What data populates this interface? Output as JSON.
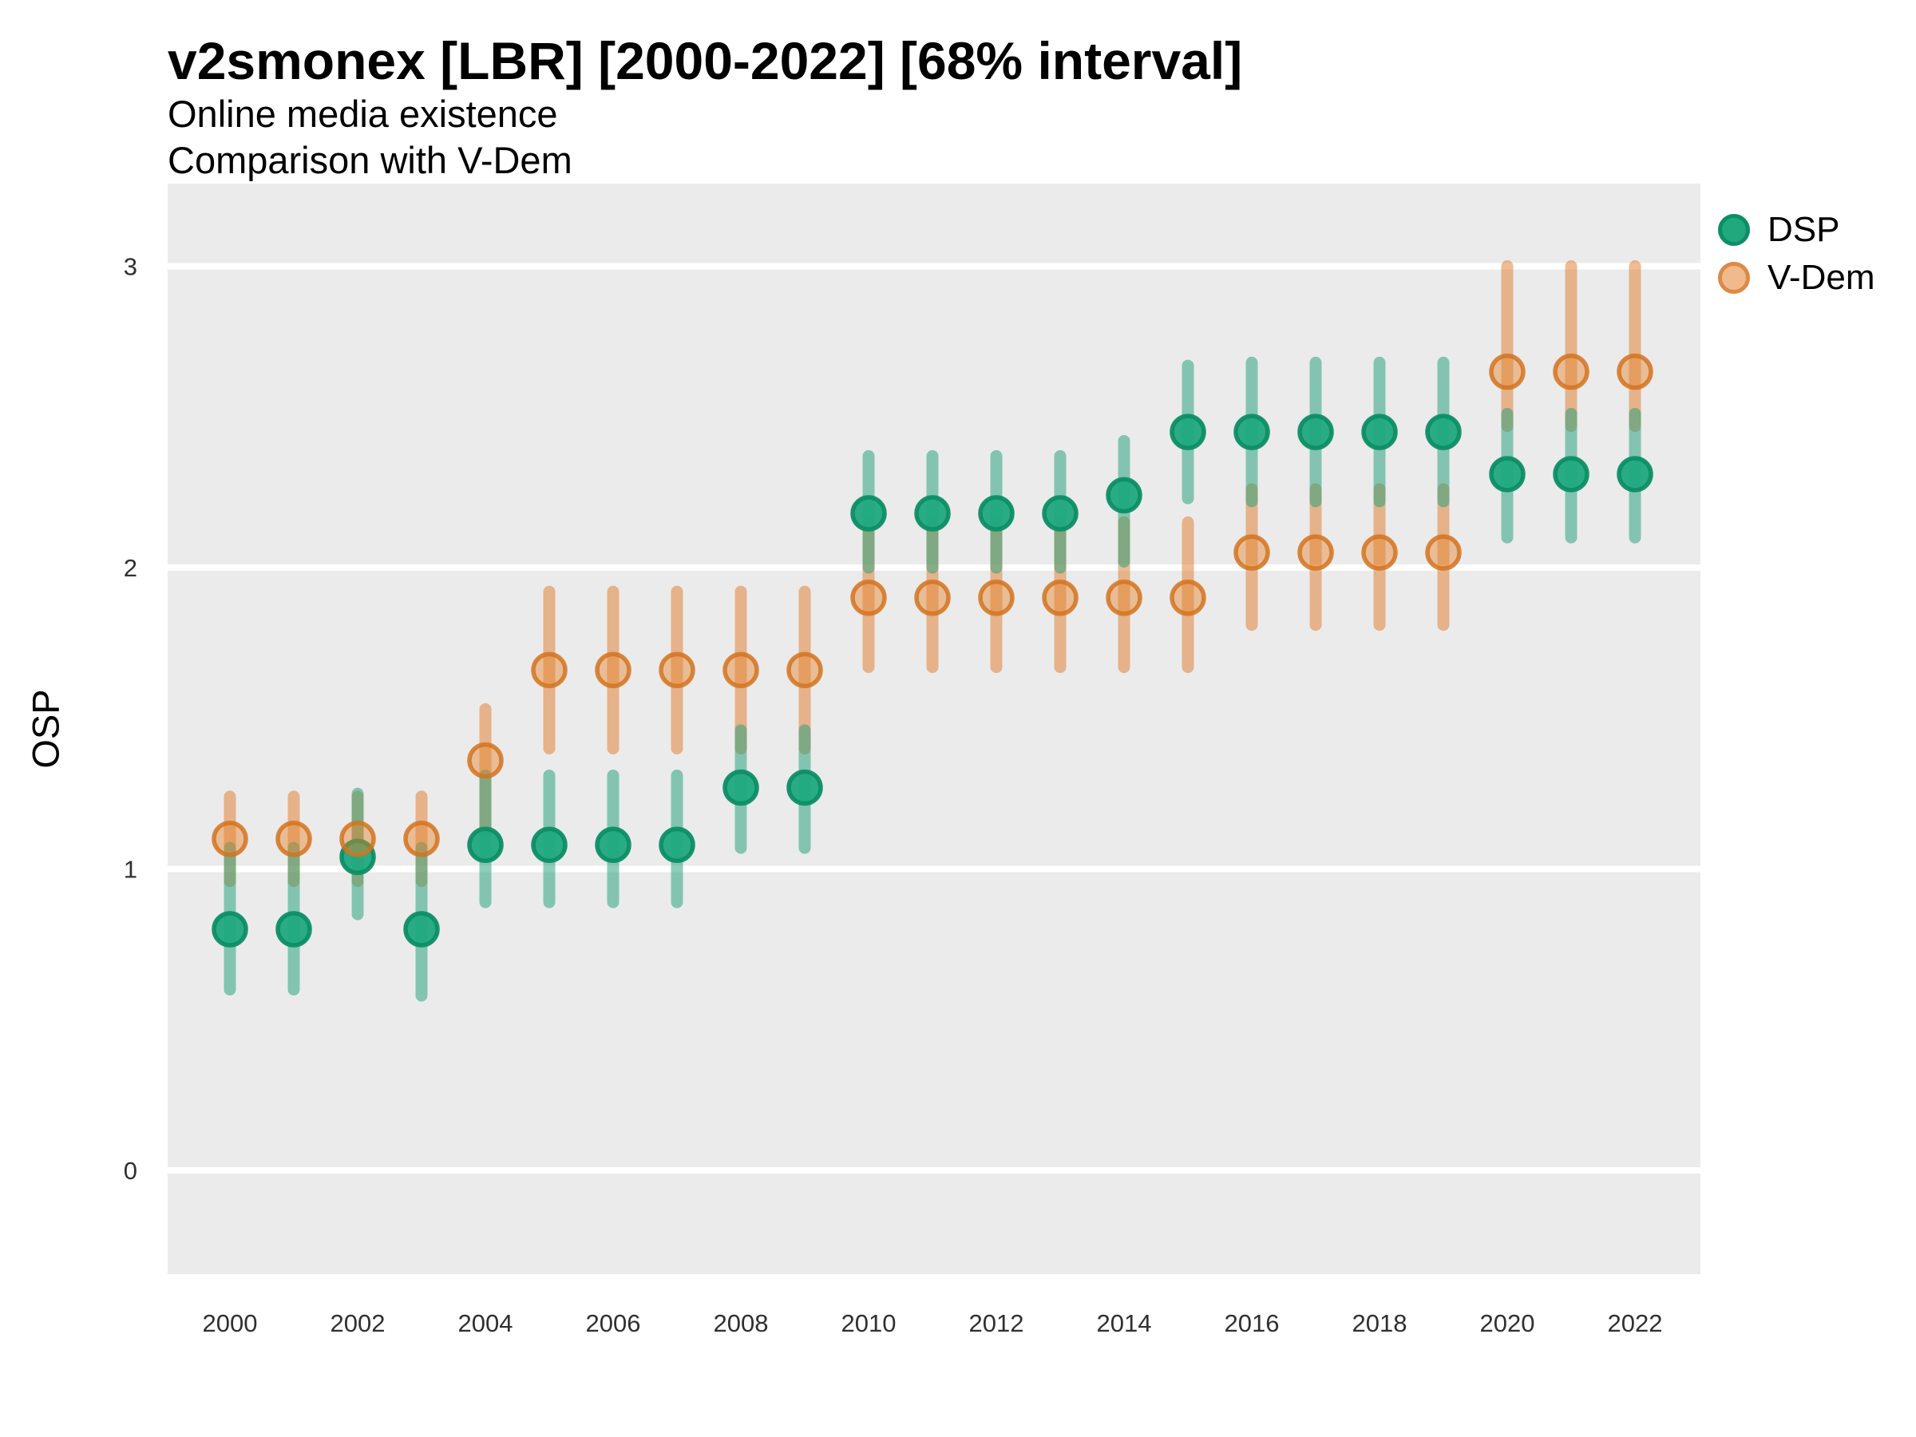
{
  "header": {
    "title": "v2smonex [LBR] [2000-2022] [68% interval]",
    "subtitle1": "Online media existence",
    "subtitle2": "Comparison with V-Dem"
  },
  "y_axis_label": "OSP",
  "legend": [
    {
      "label": "DSP",
      "marker": "filled-green-circle"
    },
    {
      "label": "V-Dem",
      "marker": "light-orange-circle"
    }
  ],
  "colors": {
    "panel_bg": "#EBEBEB",
    "grid": "#FFFFFF",
    "dsp_point_fill": "#1FA97D",
    "dsp_point_stroke": "#0D8E65",
    "dsp_bar": "#1B9E77",
    "vdem_point_fill": "#E5822D",
    "vdem_point_stroke": "#D3731F",
    "vdem_bar": "#E07A29",
    "tick_text": "#303030"
  },
  "chart_data": {
    "type": "scatter",
    "subtype": "pointrange",
    "title": "v2smonex [LBR] [2000-2022] [68% interval]",
    "interval": "68%",
    "xlabel": "",
    "ylabel": "OSP",
    "x": [
      2000,
      2001,
      2002,
      2003,
      2004,
      2005,
      2006,
      2007,
      2008,
      2009,
      2010,
      2011,
      2012,
      2013,
      2014,
      2015,
      2016,
      2017,
      2018,
      2019,
      2020,
      2021,
      2022
    ],
    "series": [
      {
        "name": "DSP",
        "color": "#1B9E77",
        "values": [
          0.8,
          0.8,
          1.04,
          0.8,
          1.08,
          1.08,
          1.08,
          1.08,
          1.27,
          1.27,
          2.18,
          2.18,
          2.18,
          2.18,
          2.24,
          2.45,
          2.45,
          2.45,
          2.45,
          2.45,
          2.31,
          2.31,
          2.31
        ],
        "lo": [
          0.6,
          0.6,
          0.85,
          0.58,
          0.89,
          0.89,
          0.89,
          0.89,
          1.07,
          1.07,
          2.0,
          2.0,
          2.0,
          2.0,
          2.02,
          2.23,
          2.22,
          2.22,
          2.22,
          2.22,
          2.1,
          2.1,
          2.1
        ],
        "hi": [
          1.07,
          1.07,
          1.25,
          1.07,
          1.31,
          1.31,
          1.31,
          1.31,
          1.46,
          1.46,
          2.37,
          2.37,
          2.37,
          2.37,
          2.42,
          2.67,
          2.68,
          2.68,
          2.68,
          2.68,
          2.51,
          2.51,
          2.51
        ]
      },
      {
        "name": "V-Dem",
        "color": "#E07A29",
        "values": [
          1.1,
          1.1,
          1.1,
          1.1,
          1.36,
          1.66,
          1.66,
          1.66,
          1.66,
          1.66,
          1.9,
          1.9,
          1.9,
          1.9,
          1.9,
          1.9,
          2.05,
          2.05,
          2.05,
          2.05,
          2.65,
          2.65,
          2.65
        ],
        "lo": [
          0.96,
          0.96,
          0.96,
          0.96,
          1.12,
          1.4,
          1.4,
          1.4,
          1.4,
          1.4,
          1.67,
          1.67,
          1.67,
          1.67,
          1.67,
          1.67,
          1.81,
          1.81,
          1.81,
          1.81,
          2.47,
          2.47,
          2.47
        ],
        "hi": [
          1.24,
          1.24,
          1.24,
          1.24,
          1.53,
          1.92,
          1.92,
          1.92,
          1.92,
          1.92,
          2.15,
          2.15,
          2.15,
          2.15,
          2.15,
          2.15,
          2.26,
          2.26,
          2.26,
          2.26,
          3.0,
          3.0,
          3.0
        ]
      }
    ],
    "y_ticks": [
      0,
      1,
      2,
      3
    ],
    "x_tick_labels": [
      2000,
      2002,
      2004,
      2006,
      2008,
      2010,
      2012,
      2014,
      2016,
      2018,
      2020,
      2022
    ],
    "ylim": [
      -0.35,
      3.28
    ],
    "grid": "horizontal-major-only",
    "legend_position": "right-top"
  }
}
